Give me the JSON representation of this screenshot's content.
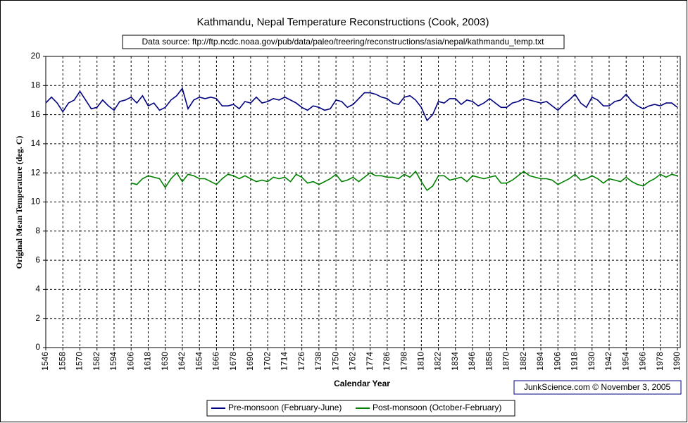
{
  "chart_data": {
    "type": "line",
    "title": "Kathmandu, Nepal Temperature Reconstructions (Cook, 2003)",
    "annotations": [
      "Data source: ftp://ftp.ncdc.noaa.gov/pub/data/paleo/treering/reconstructions/asia/nepal/kathmandu_temp.txt",
      "JunkScience.com ©  November 3, 2005"
    ],
    "x_label": "Calendar Year",
    "y_label": "Original Mean Temperature (deg. C)",
    "xlim": [
      1546,
      1992
    ],
    "ylim": [
      0,
      20
    ],
    "xticks": [
      1546,
      1558,
      1570,
      1582,
      1594,
      1606,
      1618,
      1630,
      1642,
      1654,
      1666,
      1678,
      1690,
      1702,
      1714,
      1726,
      1738,
      1750,
      1762,
      1774,
      1786,
      1798,
      1810,
      1822,
      1834,
      1846,
      1858,
      1870,
      1882,
      1894,
      1906,
      1918,
      1930,
      1942,
      1954,
      1966,
      1978,
      1990
    ],
    "yticks": [
      0,
      2,
      4,
      6,
      8,
      10,
      12,
      14,
      16,
      18,
      20
    ],
    "grid": true,
    "legend": "bottom",
    "x": [
      1546,
      1550,
      1554,
      1558,
      1562,
      1566,
      1570,
      1574,
      1578,
      1582,
      1586,
      1590,
      1594,
      1598,
      1602,
      1606,
      1610,
      1614,
      1618,
      1622,
      1626,
      1630,
      1634,
      1638,
      1642,
      1646,
      1650,
      1654,
      1658,
      1662,
      1666,
      1670,
      1674,
      1678,
      1682,
      1686,
      1690,
      1694,
      1698,
      1702,
      1706,
      1710,
      1714,
      1718,
      1722,
      1726,
      1730,
      1734,
      1738,
      1742,
      1746,
      1750,
      1754,
      1758,
      1762,
      1766,
      1770,
      1774,
      1778,
      1782,
      1786,
      1790,
      1794,
      1798,
      1802,
      1806,
      1810,
      1814,
      1818,
      1822,
      1826,
      1830,
      1834,
      1838,
      1842,
      1846,
      1850,
      1854,
      1858,
      1862,
      1866,
      1870,
      1874,
      1878,
      1882,
      1886,
      1890,
      1894,
      1898,
      1902,
      1906,
      1910,
      1914,
      1918,
      1922,
      1926,
      1930,
      1934,
      1938,
      1942,
      1946,
      1950,
      1954,
      1958,
      1962,
      1966,
      1970,
      1974,
      1978,
      1982,
      1986,
      1990
    ],
    "series": [
      {
        "name": "Pre-monsoon (February-June)",
        "color": "#000080",
        "values": [
          16.8,
          17.2,
          16.8,
          16.2,
          16.8,
          17.0,
          17.6,
          17.0,
          16.4,
          16.5,
          17.0,
          16.6,
          16.3,
          16.9,
          17.0,
          17.2,
          16.8,
          17.3,
          16.6,
          16.8,
          16.3,
          16.5,
          17.0,
          17.3,
          17.8,
          16.4,
          17.0,
          17.2,
          17.1,
          17.2,
          17.1,
          16.6,
          16.6,
          16.7,
          16.4,
          16.9,
          16.8,
          17.2,
          16.8,
          16.9,
          17.1,
          17.0,
          17.2,
          17.0,
          16.8,
          16.5,
          16.3,
          16.6,
          16.5,
          16.3,
          16.4,
          17.0,
          16.9,
          16.5,
          16.7,
          17.1,
          17.5,
          17.5,
          17.4,
          17.2,
          17.1,
          16.8,
          16.7,
          17.2,
          17.3,
          17.0,
          16.5,
          15.6,
          16.0,
          16.9,
          16.8,
          17.1,
          17.1,
          16.7,
          17.0,
          16.9,
          16.6,
          16.8,
          17.1,
          16.8,
          16.5,
          16.5,
          16.8,
          16.9,
          17.1,
          17.0,
          16.9,
          16.8,
          16.9,
          16.6,
          16.3,
          16.7,
          17.0,
          17.4,
          16.8,
          16.5,
          17.2,
          17.0,
          16.6,
          16.6,
          16.9,
          17.0,
          17.4,
          16.9,
          16.6,
          16.4,
          16.6,
          16.7,
          16.6,
          16.8,
          16.8,
          16.5
        ]
      },
      {
        "name": "Post-monsoon (October-February)",
        "color": "#008000",
        "values": [
          null,
          null,
          null,
          null,
          null,
          null,
          null,
          null,
          null,
          null,
          null,
          null,
          null,
          null,
          null,
          11.3,
          11.2,
          11.6,
          11.8,
          11.7,
          11.6,
          11.0,
          11.6,
          12.0,
          11.4,
          11.9,
          11.8,
          11.6,
          11.6,
          11.4,
          11.2,
          11.6,
          11.9,
          11.8,
          11.6,
          11.8,
          11.6,
          11.4,
          11.5,
          11.4,
          11.7,
          11.6,
          11.7,
          11.4,
          11.9,
          11.7,
          11.3,
          11.4,
          11.2,
          11.4,
          11.6,
          11.9,
          11.4,
          11.5,
          11.7,
          11.4,
          11.7,
          12.0,
          11.8,
          11.8,
          11.7,
          11.7,
          11.6,
          11.9,
          11.7,
          12.1,
          11.4,
          10.8,
          11.1,
          11.8,
          11.8,
          11.5,
          11.6,
          11.7,
          11.4,
          11.8,
          11.7,
          11.6,
          11.7,
          11.8,
          11.3,
          11.3,
          11.5,
          11.8,
          12.1,
          11.8,
          11.7,
          11.6,
          11.6,
          11.5,
          11.2,
          11.4,
          11.6,
          11.9,
          11.5,
          11.6,
          11.8,
          11.6,
          11.3,
          11.6,
          11.5,
          11.4,
          11.7,
          11.4,
          11.2,
          11.1,
          11.4,
          11.6,
          11.9,
          11.7,
          11.9,
          11.8
        ]
      }
    ]
  }
}
